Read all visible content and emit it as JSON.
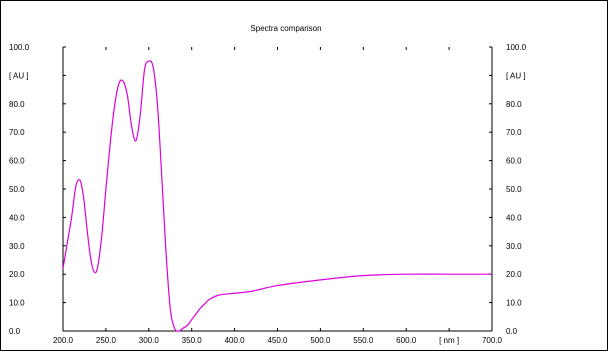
{
  "chart_data": {
    "type": "line",
    "title": "Spectra comparison",
    "xlabel": "[ nm ]",
    "ylabel": "[ AU ]",
    "ylabel_right": "[ AU ]",
    "xlim": [
      200.0,
      700.0
    ],
    "ylim": [
      0.0,
      100.0
    ],
    "x_ticks": [
      "200.0",
      "250.0",
      "300.0",
      "350.0",
      "400.0",
      "450.0",
      "500.0",
      "550.0",
      "600.0",
      "700.0"
    ],
    "y_ticks": [
      "0.0",
      "10.0",
      "20.0",
      "30.0",
      "40.0",
      "50.0",
      "60.0",
      "70.0",
      "80.0",
      "100.0"
    ],
    "grid": false,
    "line_color": "#dd00dd",
    "series": [
      {
        "x": [
          200,
          205,
          210,
          215,
          220,
          224,
          228,
          232,
          236,
          240,
          245,
          250,
          255,
          260,
          265,
          270,
          275,
          280,
          285,
          290,
          295,
          300,
          305,
          310,
          315,
          320,
          325,
          330,
          335,
          340,
          345,
          350,
          355,
          360,
          365,
          370,
          380,
          390,
          400,
          420,
          450,
          500,
          550,
          600,
          650,
          700
        ],
        "y": [
          22,
          31,
          40,
          51,
          53,
          47,
          36,
          26,
          21,
          22,
          33,
          50,
          66,
          79,
          87,
          88,
          83,
          72,
          67,
          76,
          92,
          95,
          93,
          80,
          55,
          28,
          8,
          1,
          0,
          1,
          2,
          4,
          6,
          8,
          9.5,
          11,
          12.5,
          13,
          13.3,
          14,
          16,
          18,
          19.5,
          20,
          20,
          20
        ]
      }
    ]
  }
}
